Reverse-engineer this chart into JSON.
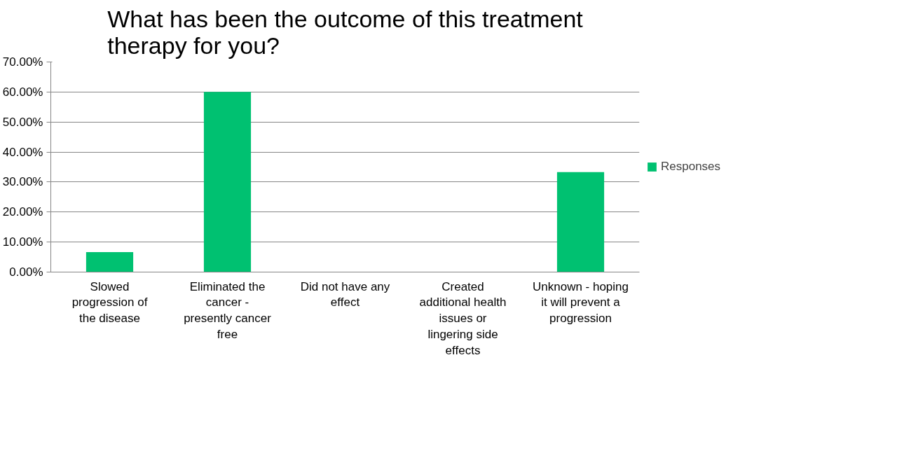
{
  "chart_data": {
    "type": "bar",
    "title": "What has been the outcome of this treatment therapy for you?",
    "categories": [
      "Slowed progression of the disease",
      "Eliminated the cancer - presently cancer free",
      "Did not have any effect",
      "Created additional health issues or lingering side effects",
      "Unknown - hoping it will prevent a progression"
    ],
    "series": [
      {
        "name": "Responses",
        "color": "#00c171",
        "values": [
          6.67,
          60,
          0,
          0,
          33.33
        ]
      }
    ],
    "ylim": [
      0,
      70
    ],
    "yticks": [
      {
        "value": 0,
        "label": "0.00%"
      },
      {
        "value": 10,
        "label": "10.00%"
      },
      {
        "value": 20,
        "label": "20.00%"
      },
      {
        "value": 30,
        "label": "30.00%"
      },
      {
        "value": 40,
        "label": "40.00%"
      },
      {
        "value": 50,
        "label": "50.00%"
      },
      {
        "value": 60,
        "label": "60.00%"
      },
      {
        "value": 70,
        "label": "70.00%"
      }
    ],
    "grid": "y",
    "legend": "right"
  }
}
